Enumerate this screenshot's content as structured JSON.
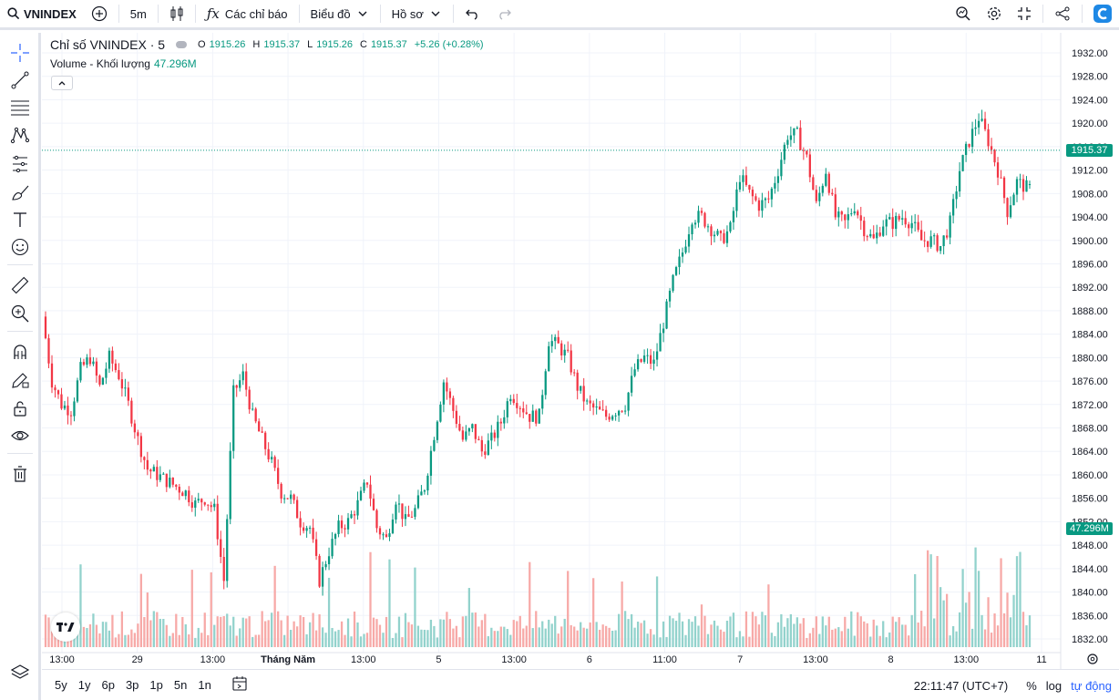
{
  "toolbar": {
    "symbol": "VNINDEX",
    "interval": "5m",
    "indicators_label": "Các chỉ báo",
    "chart_label": "Biểu đồ",
    "profile_label": "Hồ sơ"
  },
  "legend": {
    "title": "Chỉ số VNINDEX · 5",
    "o_label": "O",
    "o_value": "1915.26",
    "h_label": "H",
    "h_value": "1915.37",
    "l_label": "L",
    "l_value": "1915.26",
    "c_label": "C",
    "c_value": "1915.37",
    "change": "+5.26 (+0.28%)",
    "volume_label": "Volume - Khối lượng",
    "volume_value": "47.296M"
  },
  "price_axis": {
    "labels": [
      "1932.00",
      "1928.00",
      "1924.00",
      "1920.00",
      "1916.00",
      "1912.00",
      "1908.00",
      "1904.00",
      "1900.00",
      "1896.00",
      "1892.00",
      "1888.00",
      "1884.00",
      "1880.00",
      "1876.00",
      "1872.00",
      "1868.00",
      "1864.00",
      "1860.00",
      "1856.00",
      "1852.00",
      "1848.00",
      "1844.00",
      "1840.00",
      "1836.00",
      "1832.00"
    ],
    "last_price": "1915.37",
    "last_volume": "47.296M"
  },
  "time_axis": {
    "labels": [
      "13:00",
      "29",
      "13:00",
      "Tháng Năm",
      "13:00",
      "5",
      "13:00",
      "6",
      "11:00",
      "7",
      "13:00",
      "8",
      "13:00",
      "11"
    ]
  },
  "bottom": {
    "ranges": [
      "5y",
      "1y",
      "6p",
      "3p",
      "1p",
      "5n",
      "1n"
    ],
    "clock": "22:11:47 (UTC+7)",
    "percent": "%",
    "log": "log",
    "auto": "tự động"
  },
  "colors": {
    "up": "#089981",
    "down": "#f23645",
    "up_vol": "#92d2cc",
    "down_vol": "#f7a9a7",
    "accent": "#2962ff"
  },
  "chart_data": {
    "type": "candlestick",
    "symbol": "VNINDEX",
    "interval": "5m",
    "ylim": [
      1830,
      1934
    ],
    "close_path": [
      1887,
      1876,
      1872,
      1871,
      1878,
      1880,
      1875,
      1880,
      1877,
      1872,
      1866,
      1861,
      1860,
      1859,
      1858,
      1857,
      1855,
      1856,
      1854,
      1842,
      1874,
      1877,
      1870,
      1866,
      1862,
      1857,
      1856,
      1852,
      1851,
      1842,
      1847,
      1851,
      1852,
      1855,
      1859,
      1851,
      1849,
      1856,
      1852,
      1854,
      1858,
      1867,
      1876,
      1871,
      1866,
      1868,
      1864,
      1866,
      1869,
      1874,
      1872,
      1870,
      1870,
      1883,
      1882,
      1880,
      1875,
      1872,
      1871,
      1870,
      1871,
      1872,
      1878,
      1880,
      1879,
      1886,
      1893,
      1898,
      1904,
      1904,
      1902,
      1900,
      1902,
      1911,
      1908,
      1906,
      1907,
      1912,
      1918,
      1918,
      1914,
      1906,
      1912,
      1904,
      1903,
      1906,
      1902,
      1900,
      1903,
      1903,
      1904,
      1903,
      1900,
      1900,
      1899,
      1903,
      1912,
      1917,
      1921,
      1917,
      1912,
      1905,
      1910,
      1909
    ],
    "volume_range_M": [
      0,
      60
    ],
    "last": {
      "open": 1915.26,
      "high": 1915.37,
      "low": 1915.26,
      "close": 1915.37,
      "change": 5.26,
      "change_pct": 0.28,
      "volume": "47.296M"
    }
  }
}
